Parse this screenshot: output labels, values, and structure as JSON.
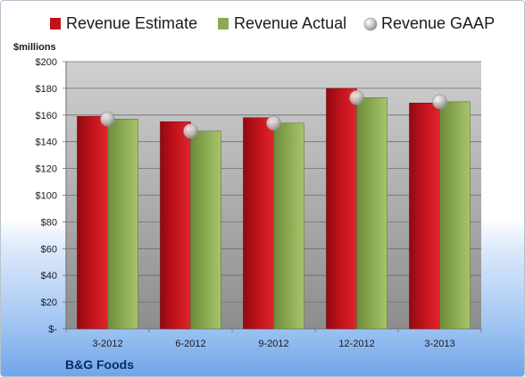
{
  "chart_data": {
    "type": "bar",
    "title": "B&G Foods",
    "ylabel": "$millions",
    "ylim": [
      0,
      200
    ],
    "yticks": [
      0,
      20,
      40,
      60,
      80,
      100,
      120,
      140,
      160,
      180,
      200
    ],
    "ytick_labels": [
      "$-",
      "$20",
      "$40",
      "$60",
      "$80",
      "$100",
      "$120",
      "$140",
      "$160",
      "$180",
      "$200"
    ],
    "categories": [
      "3-2012",
      "6-2012",
      "9-2012",
      "12-2012",
      "3-2013"
    ],
    "series": [
      {
        "name": "Revenue Estimate",
        "kind": "bar",
        "values": [
          159,
          155,
          158,
          180,
          169
        ]
      },
      {
        "name": "Revenue Actual",
        "kind": "bar",
        "values": [
          157,
          148,
          154,
          173,
          170
        ]
      },
      {
        "name": "Revenue GAAP",
        "kind": "marker",
        "values": [
          157,
          148,
          154,
          173,
          170
        ]
      }
    ],
    "grid": true,
    "legend": "top",
    "colors": {
      "estimate": "#c0121a",
      "actual": "#8aaa52",
      "gaap": "#c4c4c4",
      "plot_bg_top": "#d0d0d0",
      "plot_bg_bottom": "#8d8d8d"
    }
  }
}
